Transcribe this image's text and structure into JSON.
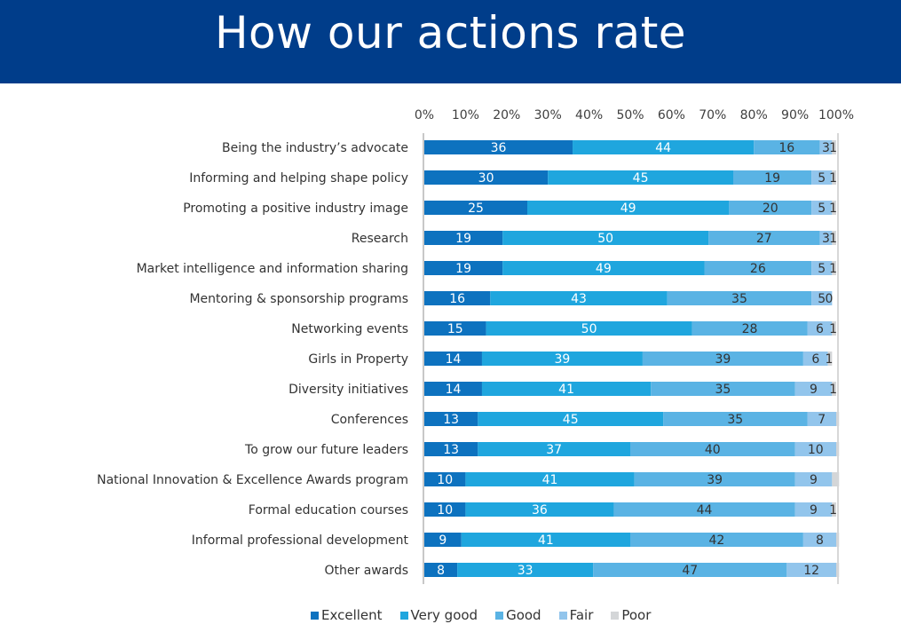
{
  "header": {
    "title": "How our actions rate"
  },
  "chart_data": {
    "type": "bar",
    "orientation": "horizontal",
    "stacked": true,
    "title": "How our actions rate",
    "xlim": [
      0,
      100
    ],
    "tick_labels": [
      "0%",
      "10%",
      "20%",
      "30%",
      "40%",
      "50%",
      "60%",
      "70%",
      "80%",
      "90%",
      "100%"
    ],
    "legend_position": "bottom",
    "categories": [
      "Being the industry’s advocate",
      "Informing and helping shape policy",
      "Promoting a positive industry image",
      "Research",
      "Market intelligence and information sharing",
      "Mentoring & sponsorship programs",
      "Networking events",
      "Girls in Property",
      "Diversity initiatives",
      "Conferences",
      "To grow our future leaders",
      "National Innovation & Excellence Awards program",
      "Formal education courses",
      "Informal professional development",
      "Other awards"
    ],
    "series": [
      {
        "name": "Excellent",
        "color": "#0d72bf",
        "values": [
          36,
          30,
          25,
          19,
          19,
          16,
          15,
          14,
          14,
          13,
          13,
          10,
          10,
          9,
          8
        ],
        "labels": [
          "36",
          "30",
          "25",
          "19",
          "19",
          "16",
          "15",
          "14",
          "14",
          "13",
          "13",
          "10",
          "10",
          "9",
          "8"
        ]
      },
      {
        "name": "Very good",
        "color": "#1fa6de",
        "values": [
          44,
          45,
          49,
          50,
          49,
          43,
          50,
          39,
          41,
          45,
          37,
          41,
          36,
          41,
          33
        ],
        "labels": [
          "44",
          "45",
          "49",
          "50",
          "49",
          "43",
          "50",
          "39",
          "41",
          "45",
          "37",
          "41",
          "36",
          "41",
          "33"
        ]
      },
      {
        "name": "Good",
        "color": "#5ab3e4",
        "values": [
          16,
          19,
          20,
          27,
          26,
          35,
          28,
          39,
          35,
          35,
          40,
          39,
          44,
          42,
          47
        ],
        "labels": [
          "16",
          "19",
          "20",
          "27",
          "26",
          "35",
          "28",
          "39",
          "35",
          "35",
          "40",
          "39",
          "44",
          "42",
          "47"
        ]
      },
      {
        "name": "Fair",
        "color": "#92c5ec",
        "values": [
          3,
          5,
          5,
          3,
          5,
          5,
          6,
          6,
          9,
          7,
          10,
          9,
          9,
          8,
          12
        ],
        "labels": [
          "3",
          "5",
          "5",
          "3",
          "5",
          "5",
          "6",
          "6",
          "9",
          "7",
          "10",
          "9",
          "9",
          "8",
          "12"
        ]
      },
      {
        "name": "Poor",
        "color": "#d4d6d8",
        "values": [
          1,
          1,
          1,
          1,
          1,
          0,
          1,
          1,
          1,
          0.7,
          0.7,
          1.7,
          1,
          0.7,
          0.7
        ],
        "labels": [
          "1",
          "1",
          "1",
          "1",
          "1",
          "0",
          "1",
          "1",
          "1",
          "",
          "",
          "",
          "1",
          "",
          ""
        ]
      }
    ]
  }
}
